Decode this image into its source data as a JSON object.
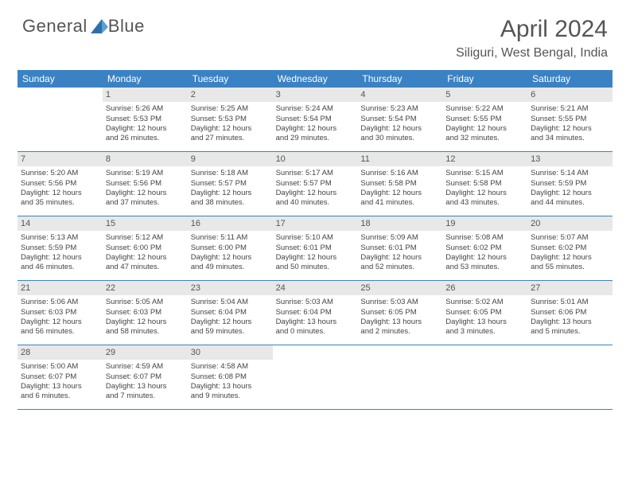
{
  "brand": {
    "name_part1": "General",
    "name_part2": "Blue"
  },
  "title": "April 2024",
  "location": "Siliguri, West Bengal, India",
  "colors": {
    "header_bg": "#3b82c4",
    "header_text": "#ffffff",
    "date_bg": "#e8e8e8",
    "text": "#444444",
    "border": "#3b82c4"
  },
  "daynames": [
    "Sunday",
    "Monday",
    "Tuesday",
    "Wednesday",
    "Thursday",
    "Friday",
    "Saturday"
  ],
  "weeks": [
    [
      {
        "date": "",
        "sunrise": "",
        "sunset": "",
        "daylight1": "",
        "daylight2": ""
      },
      {
        "date": "1",
        "sunrise": "Sunrise: 5:26 AM",
        "sunset": "Sunset: 5:53 PM",
        "daylight1": "Daylight: 12 hours",
        "daylight2": "and 26 minutes."
      },
      {
        "date": "2",
        "sunrise": "Sunrise: 5:25 AM",
        "sunset": "Sunset: 5:53 PM",
        "daylight1": "Daylight: 12 hours",
        "daylight2": "and 27 minutes."
      },
      {
        "date": "3",
        "sunrise": "Sunrise: 5:24 AM",
        "sunset": "Sunset: 5:54 PM",
        "daylight1": "Daylight: 12 hours",
        "daylight2": "and 29 minutes."
      },
      {
        "date": "4",
        "sunrise": "Sunrise: 5:23 AM",
        "sunset": "Sunset: 5:54 PM",
        "daylight1": "Daylight: 12 hours",
        "daylight2": "and 30 minutes."
      },
      {
        "date": "5",
        "sunrise": "Sunrise: 5:22 AM",
        "sunset": "Sunset: 5:55 PM",
        "daylight1": "Daylight: 12 hours",
        "daylight2": "and 32 minutes."
      },
      {
        "date": "6",
        "sunrise": "Sunrise: 5:21 AM",
        "sunset": "Sunset: 5:55 PM",
        "daylight1": "Daylight: 12 hours",
        "daylight2": "and 34 minutes."
      }
    ],
    [
      {
        "date": "7",
        "sunrise": "Sunrise: 5:20 AM",
        "sunset": "Sunset: 5:56 PM",
        "daylight1": "Daylight: 12 hours",
        "daylight2": "and 35 minutes."
      },
      {
        "date": "8",
        "sunrise": "Sunrise: 5:19 AM",
        "sunset": "Sunset: 5:56 PM",
        "daylight1": "Daylight: 12 hours",
        "daylight2": "and 37 minutes."
      },
      {
        "date": "9",
        "sunrise": "Sunrise: 5:18 AM",
        "sunset": "Sunset: 5:57 PM",
        "daylight1": "Daylight: 12 hours",
        "daylight2": "and 38 minutes."
      },
      {
        "date": "10",
        "sunrise": "Sunrise: 5:17 AM",
        "sunset": "Sunset: 5:57 PM",
        "daylight1": "Daylight: 12 hours",
        "daylight2": "and 40 minutes."
      },
      {
        "date": "11",
        "sunrise": "Sunrise: 5:16 AM",
        "sunset": "Sunset: 5:58 PM",
        "daylight1": "Daylight: 12 hours",
        "daylight2": "and 41 minutes."
      },
      {
        "date": "12",
        "sunrise": "Sunrise: 5:15 AM",
        "sunset": "Sunset: 5:58 PM",
        "daylight1": "Daylight: 12 hours",
        "daylight2": "and 43 minutes."
      },
      {
        "date": "13",
        "sunrise": "Sunrise: 5:14 AM",
        "sunset": "Sunset: 5:59 PM",
        "daylight1": "Daylight: 12 hours",
        "daylight2": "and 44 minutes."
      }
    ],
    [
      {
        "date": "14",
        "sunrise": "Sunrise: 5:13 AM",
        "sunset": "Sunset: 5:59 PM",
        "daylight1": "Daylight: 12 hours",
        "daylight2": "and 46 minutes."
      },
      {
        "date": "15",
        "sunrise": "Sunrise: 5:12 AM",
        "sunset": "Sunset: 6:00 PM",
        "daylight1": "Daylight: 12 hours",
        "daylight2": "and 47 minutes."
      },
      {
        "date": "16",
        "sunrise": "Sunrise: 5:11 AM",
        "sunset": "Sunset: 6:00 PM",
        "daylight1": "Daylight: 12 hours",
        "daylight2": "and 49 minutes."
      },
      {
        "date": "17",
        "sunrise": "Sunrise: 5:10 AM",
        "sunset": "Sunset: 6:01 PM",
        "daylight1": "Daylight: 12 hours",
        "daylight2": "and 50 minutes."
      },
      {
        "date": "18",
        "sunrise": "Sunrise: 5:09 AM",
        "sunset": "Sunset: 6:01 PM",
        "daylight1": "Daylight: 12 hours",
        "daylight2": "and 52 minutes."
      },
      {
        "date": "19",
        "sunrise": "Sunrise: 5:08 AM",
        "sunset": "Sunset: 6:02 PM",
        "daylight1": "Daylight: 12 hours",
        "daylight2": "and 53 minutes."
      },
      {
        "date": "20",
        "sunrise": "Sunrise: 5:07 AM",
        "sunset": "Sunset: 6:02 PM",
        "daylight1": "Daylight: 12 hours",
        "daylight2": "and 55 minutes."
      }
    ],
    [
      {
        "date": "21",
        "sunrise": "Sunrise: 5:06 AM",
        "sunset": "Sunset: 6:03 PM",
        "daylight1": "Daylight: 12 hours",
        "daylight2": "and 56 minutes."
      },
      {
        "date": "22",
        "sunrise": "Sunrise: 5:05 AM",
        "sunset": "Sunset: 6:03 PM",
        "daylight1": "Daylight: 12 hours",
        "daylight2": "and 58 minutes."
      },
      {
        "date": "23",
        "sunrise": "Sunrise: 5:04 AM",
        "sunset": "Sunset: 6:04 PM",
        "daylight1": "Daylight: 12 hours",
        "daylight2": "and 59 minutes."
      },
      {
        "date": "24",
        "sunrise": "Sunrise: 5:03 AM",
        "sunset": "Sunset: 6:04 PM",
        "daylight1": "Daylight: 13 hours",
        "daylight2": "and 0 minutes."
      },
      {
        "date": "25",
        "sunrise": "Sunrise: 5:03 AM",
        "sunset": "Sunset: 6:05 PM",
        "daylight1": "Daylight: 13 hours",
        "daylight2": "and 2 minutes."
      },
      {
        "date": "26",
        "sunrise": "Sunrise: 5:02 AM",
        "sunset": "Sunset: 6:05 PM",
        "daylight1": "Daylight: 13 hours",
        "daylight2": "and 3 minutes."
      },
      {
        "date": "27",
        "sunrise": "Sunrise: 5:01 AM",
        "sunset": "Sunset: 6:06 PM",
        "daylight1": "Daylight: 13 hours",
        "daylight2": "and 5 minutes."
      }
    ],
    [
      {
        "date": "28",
        "sunrise": "Sunrise: 5:00 AM",
        "sunset": "Sunset: 6:07 PM",
        "daylight1": "Daylight: 13 hours",
        "daylight2": "and 6 minutes."
      },
      {
        "date": "29",
        "sunrise": "Sunrise: 4:59 AM",
        "sunset": "Sunset: 6:07 PM",
        "daylight1": "Daylight: 13 hours",
        "daylight2": "and 7 minutes."
      },
      {
        "date": "30",
        "sunrise": "Sunrise: 4:58 AM",
        "sunset": "Sunset: 6:08 PM",
        "daylight1": "Daylight: 13 hours",
        "daylight2": "and 9 minutes."
      },
      {
        "date": "",
        "sunrise": "",
        "sunset": "",
        "daylight1": "",
        "daylight2": ""
      },
      {
        "date": "",
        "sunrise": "",
        "sunset": "",
        "daylight1": "",
        "daylight2": ""
      },
      {
        "date": "",
        "sunrise": "",
        "sunset": "",
        "daylight1": "",
        "daylight2": ""
      },
      {
        "date": "",
        "sunrise": "",
        "sunset": "",
        "daylight1": "",
        "daylight2": ""
      }
    ]
  ]
}
